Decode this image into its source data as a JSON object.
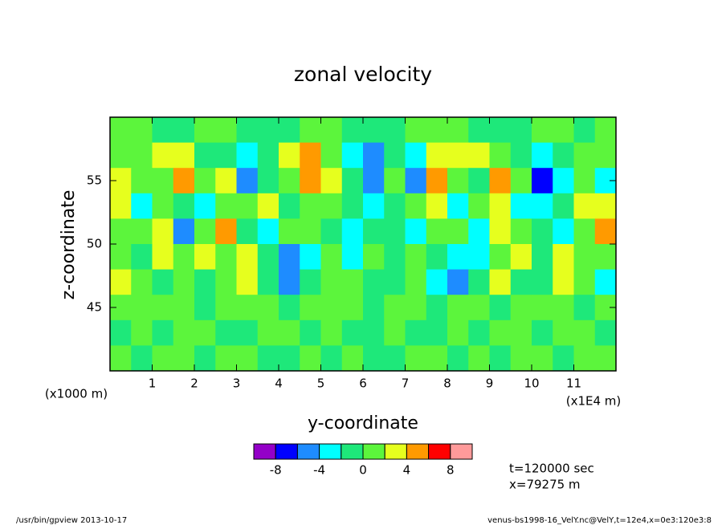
{
  "chart_data": {
    "type": "contour",
    "title": "zonal velocity",
    "x_label": "y-coordinate",
    "y_label": "z-coordinate",
    "x_unit": "(x1E4 m)",
    "y_unit": "(x1000 m)",
    "xlim": [
      0,
      12
    ],
    "ylim": [
      40,
      60
    ],
    "xticks": [
      1,
      2,
      3,
      4,
      5,
      6,
      7,
      8,
      9,
      10,
      11
    ],
    "yticks": [
      45,
      50,
      55
    ],
    "x": [
      0.25,
      0.75,
      1.25,
      1.75,
      2.25,
      2.75,
      3.25,
      3.75,
      4.25,
      4.75,
      5.25,
      5.75,
      6.25,
      6.75,
      7.25,
      7.75,
      8.25,
      8.75,
      9.25,
      9.75,
      10.25,
      10.75,
      11.25,
      11.75
    ],
    "y": [
      59,
      57,
      55,
      53,
      51,
      49,
      47,
      45,
      43,
      41
    ],
    "z": [
      [
        1,
        1,
        -1,
        -1,
        1,
        1,
        -1,
        -1,
        -1,
        1,
        1,
        -1,
        -1,
        -1,
        1,
        1,
        1,
        -1,
        -1,
        -1,
        1,
        1,
        -1,
        1
      ],
      [
        1,
        1,
        3,
        3,
        -1,
        -1,
        -3,
        -1,
        3,
        5,
        1,
        -3,
        -5,
        -1,
        -3,
        3,
        3,
        3,
        1,
        -1,
        -3,
        -1,
        1,
        1
      ],
      [
        3,
        1,
        1,
        5,
        1,
        3,
        -5,
        -1,
        1,
        5,
        3,
        -1,
        -5,
        1,
        -5,
        5,
        1,
        -1,
        5,
        1,
        -7,
        -3,
        1,
        -3
      ],
      [
        3,
        -3,
        1,
        -1,
        -3,
        1,
        1,
        3,
        -1,
        1,
        1,
        -1,
        -3,
        -1,
        1,
        3,
        -3,
        1,
        3,
        -3,
        -3,
        -1,
        3,
        3
      ],
      [
        1,
        1,
        3,
        -5,
        1,
        5,
        -1,
        -3,
        1,
        1,
        -1,
        -3,
        -1,
        -1,
        -3,
        1,
        1,
        -3,
        3,
        1,
        -1,
        -3,
        1,
        5
      ],
      [
        1,
        -1,
        3,
        1,
        3,
        1,
        3,
        -1,
        -5,
        -3,
        1,
        -3,
        1,
        -1,
        1,
        -1,
        -3,
        -3,
        1,
        3,
        -1,
        3,
        1,
        1
      ],
      [
        3,
        1,
        -1,
        1,
        -1,
        1,
        3,
        -1,
        -5,
        -1,
        1,
        1,
        -1,
        -1,
        1,
        -3,
        -5,
        -1,
        3,
        -1,
        -1,
        3,
        1,
        -3
      ],
      [
        1,
        1,
        1,
        1,
        -1,
        1,
        1,
        1,
        -1,
        1,
        1,
        1,
        -1,
        1,
        1,
        -1,
        1,
        1,
        -1,
        1,
        1,
        1,
        -1,
        1
      ],
      [
        -1,
        1,
        -1,
        1,
        1,
        -1,
        -1,
        1,
        1,
        -1,
        1,
        -1,
        -1,
        1,
        -1,
        -1,
        1,
        -1,
        1,
        1,
        -1,
        1,
        1,
        -1
      ],
      [
        1,
        -1,
        1,
        1,
        -1,
        1,
        1,
        -1,
        -1,
        1,
        -1,
        1,
        -1,
        -1,
        1,
        1,
        -1,
        1,
        -1,
        1,
        1,
        -1,
        1,
        1
      ]
    ],
    "levels": [
      -10,
      -8,
      -6,
      -4,
      -2,
      0,
      2,
      4,
      6,
      8,
      10
    ],
    "colors": [
      "#9400c8",
      "#0000ff",
      "#1e8cff",
      "#00ffff",
      "#1ee87a",
      "#5cf53c",
      "#e6ff1e",
      "#ff9a00",
      "#ff0000",
      "#ff9a9a"
    ],
    "colorbar_ticks": [
      -8,
      -4,
      0,
      4,
      8
    ],
    "annotations": [
      "t=120000 sec",
      "x=79275 m"
    ],
    "footer_left": "/usr/bin/gpview  2013-10-17",
    "footer_right": "venus-bs1998-16_VelY.nc@VelY,t=12e4,x=0e3:120e3:8"
  }
}
